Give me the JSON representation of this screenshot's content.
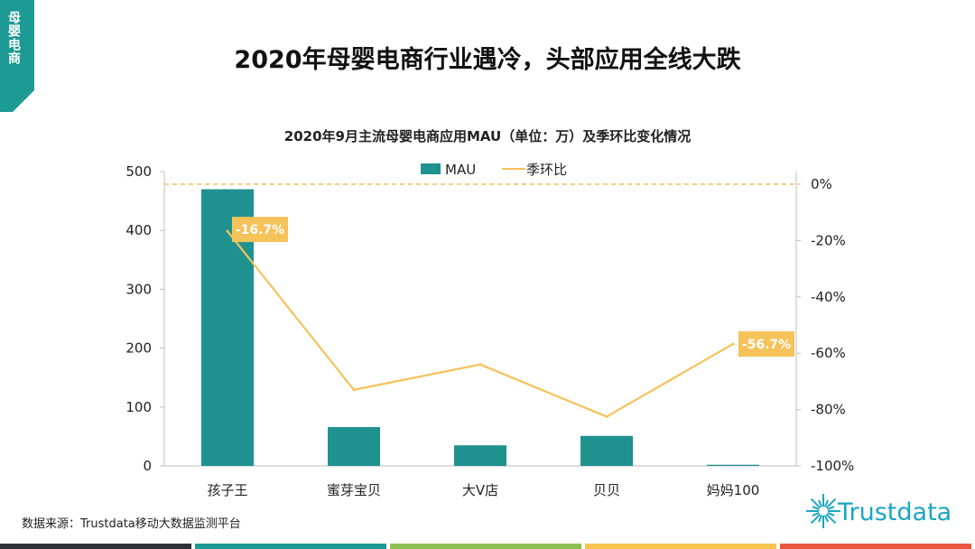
{
  "side_tab": {
    "label": "母婴电商",
    "color": "#1c9a93"
  },
  "main_title": "2020年母婴电商行业遇冷，头部应用全线大跌",
  "source": "数据来源：Trustdata移动大数据监测平台",
  "logo": {
    "text": "Trustdata",
    "color": "#1aa6c2",
    "icon": "starburst-icon"
  },
  "bottom_bar_colors": [
    "#2f3338",
    "#1c9a93",
    "#8cc152",
    "#f6c44f",
    "#e9573f"
  ],
  "chart_data": {
    "type": "bar",
    "title": "2020年9月主流母婴电商应用MAU（单位：万）及季环比变化情况",
    "categories": [
      "孩子王",
      "蜜芽宝贝",
      "大V店",
      "贝贝",
      "妈妈100"
    ],
    "series": [
      {
        "name": "MAU",
        "type": "bar",
        "axis": "left",
        "color": "#1f928f",
        "values": [
          470,
          66,
          35,
          51,
          2
        ]
      },
      {
        "name": "季环比",
        "type": "line",
        "axis": "right",
        "color": "#f6c25a",
        "values": [
          -16.7,
          -73,
          -64,
          -82.5,
          -56.7
        ]
      }
    ],
    "data_labels": [
      {
        "series": 1,
        "index": 0,
        "text": "-16.7%"
      },
      {
        "series": 1,
        "index": 4,
        "text": "-56.7%"
      }
    ],
    "y_left": {
      "ticks": [
        0,
        100,
        200,
        300,
        400,
        500
      ],
      "ylim": [
        0,
        500
      ]
    },
    "y_right": {
      "ticks": [
        "0%",
        "-20%",
        "-40%",
        "-60%",
        "-80%",
        "-100%"
      ],
      "ylim": [
        -100,
        0
      ]
    },
    "reference_line": {
      "axis": "right",
      "value": 0,
      "style": "dashed",
      "color": "#f6c25a"
    },
    "legend": {
      "position": "top"
    },
    "grid": false
  }
}
